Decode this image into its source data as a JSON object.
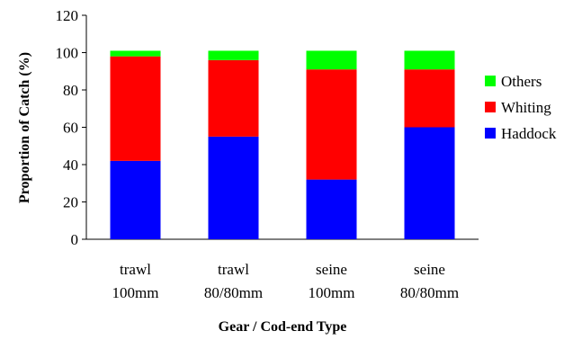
{
  "chart_data": {
    "type": "bar",
    "stacked": true,
    "xlabel": "Gear / Cod-end Type",
    "ylabel": "Proportion of Catch (%)",
    "ylim": [
      0,
      120
    ],
    "yticks": [
      0,
      20,
      40,
      60,
      80,
      100,
      120
    ],
    "grid": false,
    "legend_position": "right",
    "categories": [
      [
        "trawl",
        "100mm"
      ],
      [
        "trawl",
        "80/80mm"
      ],
      [
        "seine",
        "100mm"
      ],
      [
        "seine",
        "80/80mm"
      ]
    ],
    "series": [
      {
        "name": "Haddock",
        "color": "#0000ff",
        "values": [
          42,
          55,
          32,
          60
        ]
      },
      {
        "name": "Whiting",
        "color": "#ff0000",
        "values": [
          56,
          41,
          59,
          31
        ]
      },
      {
        "name": "Others",
        "color": "#00ff00",
        "values": [
          3,
          5,
          10,
          10
        ]
      }
    ]
  }
}
